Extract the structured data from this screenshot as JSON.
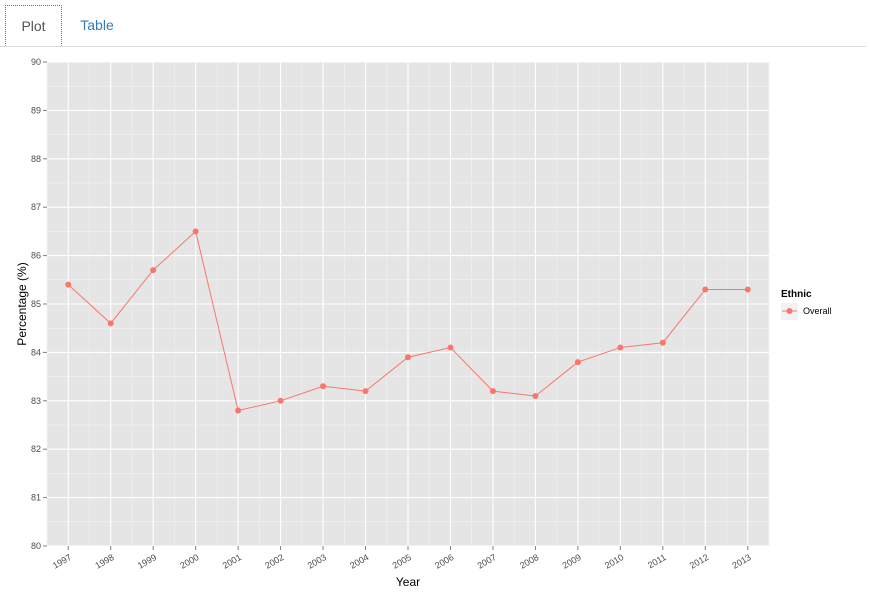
{
  "tabs": [
    {
      "label": "Plot",
      "active": true
    },
    {
      "label": "Table",
      "active": false
    }
  ],
  "chart_data": {
    "type": "line",
    "title": "",
    "xlabel": "Year",
    "ylabel": "Percentage (%)",
    "x": [
      "1997",
      "1998",
      "1999",
      "2000",
      "2001",
      "2002",
      "2003",
      "2004",
      "2005",
      "2006",
      "2007",
      "2008",
      "2009",
      "2010",
      "2011",
      "2012",
      "2013"
    ],
    "series": [
      {
        "name": "Overall",
        "values": [
          85.4,
          84.6,
          85.7,
          86.5,
          82.8,
          83.0,
          83.3,
          83.2,
          83.9,
          84.1,
          83.2,
          83.1,
          83.8,
          84.1,
          84.2,
          85.3,
          85.3
        ],
        "color": "#f8766d"
      }
    ],
    "ylim": [
      80,
      90
    ],
    "yticks": [
      80,
      81,
      82,
      83,
      84,
      85,
      86,
      87,
      88,
      89,
      90
    ],
    "legend_title": "Ethnic",
    "legend_position": "right",
    "grid": true,
    "panel_color": "#e5e5e5"
  }
}
